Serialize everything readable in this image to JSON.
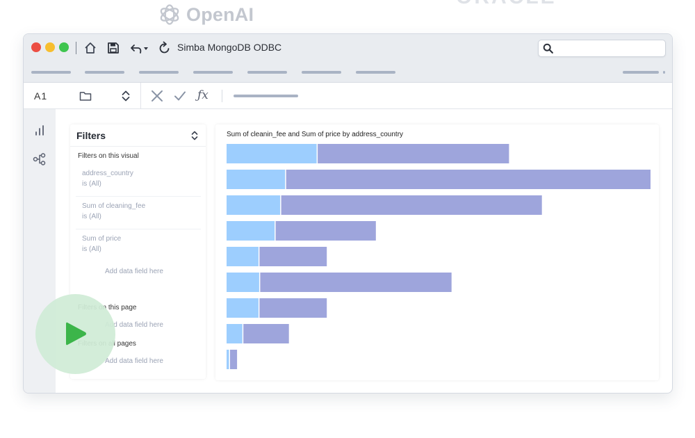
{
  "brands": {
    "openai": "OpenAI",
    "oracle": "ORACLE"
  },
  "titlebar": {
    "app_title": "Simba MongoDB ODBC",
    "icons": [
      "home-icon",
      "save-icon",
      "undo-icon",
      "refresh-icon",
      "search-icon"
    ],
    "traffic_lights": [
      "#ec4e43",
      "#f7be2f",
      "#3fc54f"
    ]
  },
  "formula_bar": {
    "cell_ref": "A1",
    "fx_label": "ƒx",
    "icons": [
      "folder-icon",
      "sort-arrows-icon",
      "cancel-icon",
      "confirm-icon"
    ]
  },
  "left_rail": {
    "icons": [
      "bar-chart-icon",
      "network-icon"
    ]
  },
  "filters": {
    "title": "Filters",
    "sections": {
      "visual": "Filters on this visual",
      "page": "Filters on this page",
      "all_pages": "Filters on all pages"
    },
    "items": [
      {
        "name": "address_country",
        "condition": "is (All)"
      },
      {
        "name": "Sum of cleaning_fee",
        "condition": "is (All)"
      },
      {
        "name": "Sum of price",
        "condition": "is (All)"
      }
    ],
    "add_field": "Add data field here"
  },
  "chart_data": {
    "type": "bar",
    "orientation": "horizontal",
    "stacked": true,
    "title": "Sum of cleanin_fee and Sum of price by address_country",
    "series_colors": [
      "#9dcefe",
      "#9ea5dc"
    ],
    "series": [
      {
        "values": [
          130,
          85,
          78,
          70,
          47,
          48,
          47,
          24,
          5
        ]
      },
      {
        "values": [
          273,
          520,
          372,
          143,
          96,
          273,
          96,
          65,
          10
        ]
      }
    ]
  },
  "play_button": {
    "icon": "play-icon",
    "color": "#3cb54a"
  }
}
